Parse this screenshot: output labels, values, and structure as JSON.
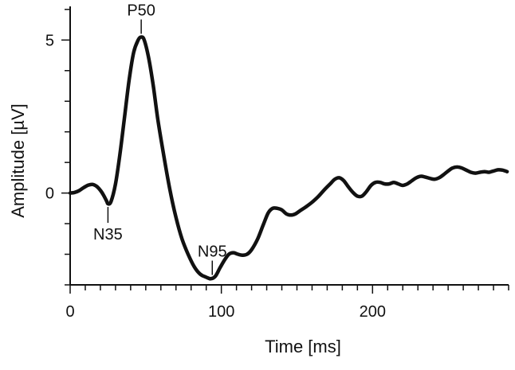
{
  "chart_data": {
    "type": "line",
    "title": "",
    "xlabel": "Time [ms]",
    "ylabel": "Amplitude [µV]",
    "xlim": [
      0,
      290
    ],
    "ylim": [
      -3.0,
      6.1
    ],
    "x_ticks_labeled": [
      0,
      100,
      200
    ],
    "x_minor_step": 10,
    "y_ticks_labeled": [
      0,
      5
    ],
    "y_minor_step": 1,
    "grid": false,
    "line_color": "#111111",
    "series": [
      {
        "points": [
          [
            0,
            0.0
          ],
          [
            3,
            0.02
          ],
          [
            6,
            0.08
          ],
          [
            9,
            0.18
          ],
          [
            12,
            0.26
          ],
          [
            15,
            0.28
          ],
          [
            18,
            0.2
          ],
          [
            21,
            0.02
          ],
          [
            24,
            -0.25
          ],
          [
            25,
            -0.35
          ],
          [
            27,
            -0.28
          ],
          [
            30,
            0.3
          ],
          [
            33,
            1.3
          ],
          [
            36,
            2.5
          ],
          [
            39,
            3.7
          ],
          [
            42,
            4.6
          ],
          [
            45,
            5.0
          ],
          [
            47,
            5.1
          ],
          [
            49,
            5.0
          ],
          [
            52,
            4.4
          ],
          [
            55,
            3.5
          ],
          [
            58,
            2.4
          ],
          [
            62,
            1.2
          ],
          [
            66,
            0.1
          ],
          [
            70,
            -0.8
          ],
          [
            74,
            -1.5
          ],
          [
            78,
            -2.0
          ],
          [
            82,
            -2.4
          ],
          [
            86,
            -2.65
          ],
          [
            90,
            -2.75
          ],
          [
            93,
            -2.8
          ],
          [
            96,
            -2.72
          ],
          [
            99,
            -2.45
          ],
          [
            102,
            -2.2
          ],
          [
            105,
            -2.0
          ],
          [
            108,
            -1.95
          ],
          [
            111,
            -2.0
          ],
          [
            114,
            -2.03
          ],
          [
            117,
            -2.0
          ],
          [
            120,
            -1.85
          ],
          [
            124,
            -1.5
          ],
          [
            128,
            -1.0
          ],
          [
            131,
            -0.65
          ],
          [
            134,
            -0.5
          ],
          [
            137,
            -0.5
          ],
          [
            140,
            -0.55
          ],
          [
            143,
            -0.68
          ],
          [
            146,
            -0.72
          ],
          [
            149,
            -0.68
          ],
          [
            152,
            -0.58
          ],
          [
            156,
            -0.45
          ],
          [
            160,
            -0.3
          ],
          [
            164,
            -0.12
          ],
          [
            168,
            0.1
          ],
          [
            172,
            0.3
          ],
          [
            175,
            0.45
          ],
          [
            178,
            0.5
          ],
          [
            181,
            0.4
          ],
          [
            184,
            0.2
          ],
          [
            187,
            0.02
          ],
          [
            190,
            -0.1
          ],
          [
            193,
            -0.1
          ],
          [
            196,
            0.05
          ],
          [
            199,
            0.25
          ],
          [
            202,
            0.35
          ],
          [
            205,
            0.35
          ],
          [
            208,
            0.3
          ],
          [
            211,
            0.3
          ],
          [
            214,
            0.35
          ],
          [
            217,
            0.3
          ],
          [
            220,
            0.25
          ],
          [
            223,
            0.3
          ],
          [
            226,
            0.4
          ],
          [
            229,
            0.5
          ],
          [
            232,
            0.55
          ],
          [
            235,
            0.52
          ],
          [
            238,
            0.48
          ],
          [
            241,
            0.45
          ],
          [
            244,
            0.5
          ],
          [
            247,
            0.6
          ],
          [
            250,
            0.72
          ],
          [
            253,
            0.82
          ],
          [
            256,
            0.85
          ],
          [
            259,
            0.82
          ],
          [
            262,
            0.75
          ],
          [
            265,
            0.68
          ],
          [
            268,
            0.65
          ],
          [
            271,
            0.68
          ],
          [
            274,
            0.7
          ],
          [
            277,
            0.68
          ],
          [
            280,
            0.72
          ],
          [
            283,
            0.76
          ],
          [
            286,
            0.75
          ],
          [
            289,
            0.7
          ]
        ]
      }
    ],
    "annotations": [
      {
        "label": "P50",
        "x": 47,
        "y": 5.1,
        "side": "above"
      },
      {
        "label": "N35",
        "x": 25,
        "y": -0.35,
        "side": "below"
      },
      {
        "label": "N95",
        "x": 94,
        "y": -2.78,
        "side": "above"
      }
    ]
  }
}
